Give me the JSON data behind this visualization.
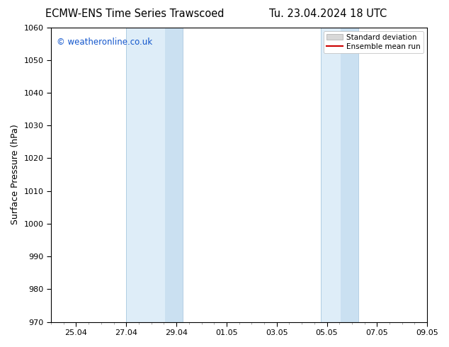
{
  "title_left": "ECMW-ENS Time Series Trawscoed",
  "title_right": "Tu. 23.04.2024 18 UTC",
  "ylabel": "Surface Pressure (hPa)",
  "ylim": [
    970,
    1060
  ],
  "yticks": [
    970,
    980,
    990,
    1000,
    1010,
    1020,
    1030,
    1040,
    1050,
    1060
  ],
  "xtick_labels": [
    "25.04",
    "27.04",
    "29.04",
    "01.05",
    "03.05",
    "05.05",
    "07.05",
    "09.05"
  ],
  "xtick_positions": [
    1,
    3,
    5,
    7,
    9,
    11,
    13,
    15
  ],
  "x_min": 0,
  "x_max": 15,
  "shade_band1_x1": 3.0,
  "shade_band1_x2": 5.25,
  "shade_band2_x1": 10.75,
  "shade_band2_x2": 12.25,
  "shade_color_light": "#deedf8",
  "shade_color_dark": "#c5ddf0",
  "shade_border_color": "#a8c8e0",
  "watermark_text": "© weatheronline.co.uk",
  "watermark_color": "#1155cc",
  "legend_std_facecolor": "#d8d8d8",
  "legend_std_edgecolor": "#aaaaaa",
  "legend_mean_color": "#cc0000",
  "bg_color": "#ffffff",
  "plot_bg_color": "#ffffff",
  "spine_color": "#000000",
  "tick_color": "#000000",
  "title_fontsize": 10.5,
  "label_fontsize": 9,
  "tick_fontsize": 8,
  "watermark_fontsize": 8.5,
  "legend_fontsize": 7.5
}
